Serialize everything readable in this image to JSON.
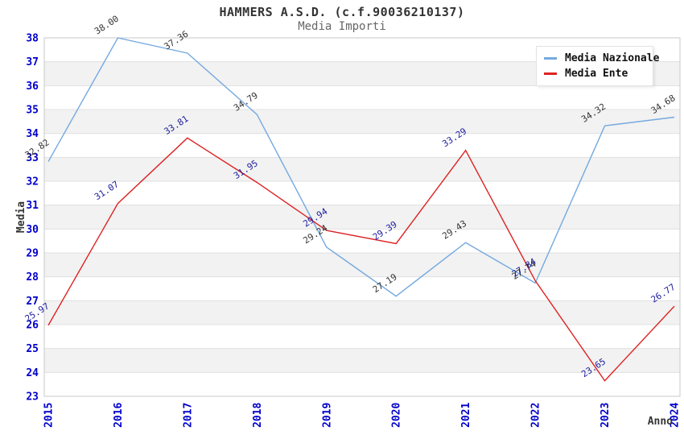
{
  "header": {
    "title": "HAMMERS A.S.D. (c.f.90036210137)",
    "subtitle": "Media Importi"
  },
  "legend": {
    "items": [
      {
        "label": "Media Nazionale",
        "color": "#74a9df"
      },
      {
        "label": "Media Ente",
        "color": "#dd2222"
      }
    ]
  },
  "axes": {
    "ylabel": "Media",
    "xlabel": "Anno"
  },
  "chart_data": {
    "type": "line",
    "title": "HAMMERS A.S.D. (c.f.90036210137)",
    "subtitle": "Media Importi",
    "xlabel": "Anno",
    "ylabel": "Media",
    "x": [
      2015,
      2016,
      2017,
      2018,
      2019,
      2020,
      2021,
      2022,
      2023,
      2024
    ],
    "ylim": [
      23,
      38
    ],
    "ytick_step": 1,
    "grid": "horizontal-bands-alternating",
    "legend_position": "top-right",
    "series": [
      {
        "name": "Media Nazionale",
        "color": "#74a9df",
        "label_color": "#333333",
        "values": [
          32.82,
          38.0,
          37.36,
          34.79,
          29.24,
          27.19,
          29.43,
          27.74,
          34.32,
          34.68
        ]
      },
      {
        "name": "Media Ente",
        "color": "#dd2222",
        "label_color": "#1c1c9e",
        "values": [
          25.97,
          31.07,
          33.81,
          31.95,
          29.94,
          29.39,
          33.29,
          27.84,
          23.65,
          26.77
        ]
      }
    ],
    "colors": {
      "band_fill": "#f2f2f2",
      "grid_line": "#e0e0e0",
      "plot_border": "#c9c9c9",
      "ytick_label": "#0000cc",
      "xtick_label": "#0000cc",
      "axis_title": "#333333"
    }
  }
}
